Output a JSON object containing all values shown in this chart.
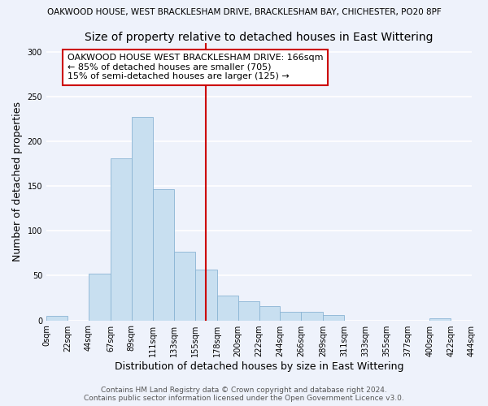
{
  "suptitle": "OAKWOOD HOUSE, WEST BRACKLESHAM DRIVE, BRACKLESHAM BAY, CHICHESTER, PO20 8PF",
  "title": "Size of property relative to detached houses in East Wittering",
  "xlabel": "Distribution of detached houses by size in East Wittering",
  "ylabel": "Number of detached properties",
  "bin_edges": [
    0,
    22,
    44,
    67,
    89,
    111,
    133,
    155,
    178,
    200,
    222,
    244,
    266,
    289,
    311,
    333,
    355,
    377,
    400,
    422,
    444
  ],
  "bar_heights": [
    5,
    0,
    52,
    181,
    227,
    147,
    77,
    57,
    28,
    21,
    16,
    10,
    10,
    6,
    0,
    0,
    0,
    0,
    2,
    0
  ],
  "bar_color": "#c8dff0",
  "bar_edgecolor": "#8ab4d4",
  "vline_x": 166,
  "vline_color": "#cc0000",
  "annotation_title": "OAKWOOD HOUSE WEST BRACKLESHAM DRIVE: 166sqm",
  "annotation_line1": "← 85% of detached houses are smaller (705)",
  "annotation_line2": "15% of semi-detached houses are larger (125) →",
  "annotation_box_facecolor": "#ffffff",
  "annotation_box_edgecolor": "#cc0000",
  "xlim": [
    0,
    444
  ],
  "ylim": [
    0,
    310
  ],
  "yticks": [
    0,
    50,
    100,
    150,
    200,
    250,
    300
  ],
  "xtick_labels": [
    "0sqm",
    "22sqm",
    "44sqm",
    "67sqm",
    "89sqm",
    "111sqm",
    "133sqm",
    "155sqm",
    "178sqm",
    "200sqm",
    "222sqm",
    "244sqm",
    "266sqm",
    "289sqm",
    "311sqm",
    "333sqm",
    "355sqm",
    "377sqm",
    "400sqm",
    "422sqm",
    "444sqm"
  ],
  "footer1": "Contains HM Land Registry data © Crown copyright and database right 2024.",
  "footer2": "Contains public sector information licensed under the Open Government Licence v3.0.",
  "background_color": "#eef2fb",
  "grid_color": "#ffffff",
  "suptitle_fontsize": 7.5,
  "title_fontsize": 10,
  "axis_label_fontsize": 9,
  "tick_fontsize": 7,
  "annotation_fontsize": 8,
  "footer_fontsize": 6.5
}
